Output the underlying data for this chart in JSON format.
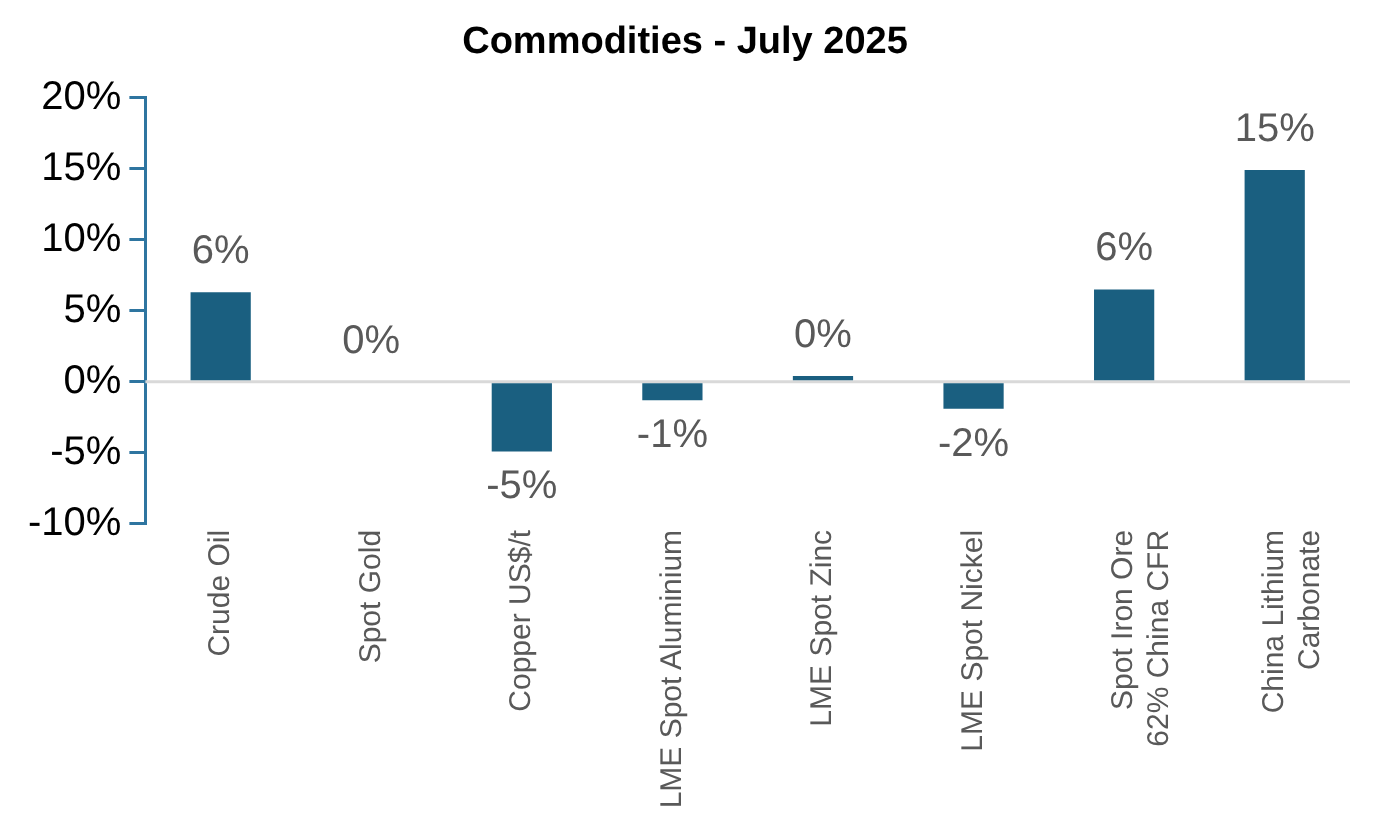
{
  "chart_data": {
    "type": "bar",
    "title": "Commodities - July 2025",
    "categories": [
      "Crude Oil",
      "Spot Gold",
      "Copper US$/t",
      "LME Spot Aluminium",
      "LME Spot Zinc",
      "LME Spot Nickel",
      "Spot Iron Ore 62% China CFR",
      "China Lithium Carbonate"
    ],
    "values": [
      6.3,
      0,
      -4.9,
      -1.3,
      0.4,
      -1.9,
      6.5,
      14.9
    ],
    "value_labels": [
      "6%",
      "0%",
      "-5%",
      "-1%",
      "0%",
      "-2%",
      "6%",
      "15%"
    ],
    "color": "#1a5f80",
    "ylim": [
      -10,
      20
    ],
    "yticks": [
      {
        "value": -10,
        "label": "-10%"
      },
      {
        "value": -5,
        "label": "-5%"
      },
      {
        "value": 0,
        "label": "0%"
      },
      {
        "value": 5,
        "label": "5%"
      },
      {
        "value": 10,
        "label": "10%"
      },
      {
        "value": 15,
        "label": "15%"
      },
      {
        "value": 20,
        "label": "20%"
      }
    ],
    "ref_lines": [
      {
        "axis": "y",
        "value": 0,
        "color": "#d9d9d9"
      }
    ],
    "grid": false,
    "legend": false
  }
}
